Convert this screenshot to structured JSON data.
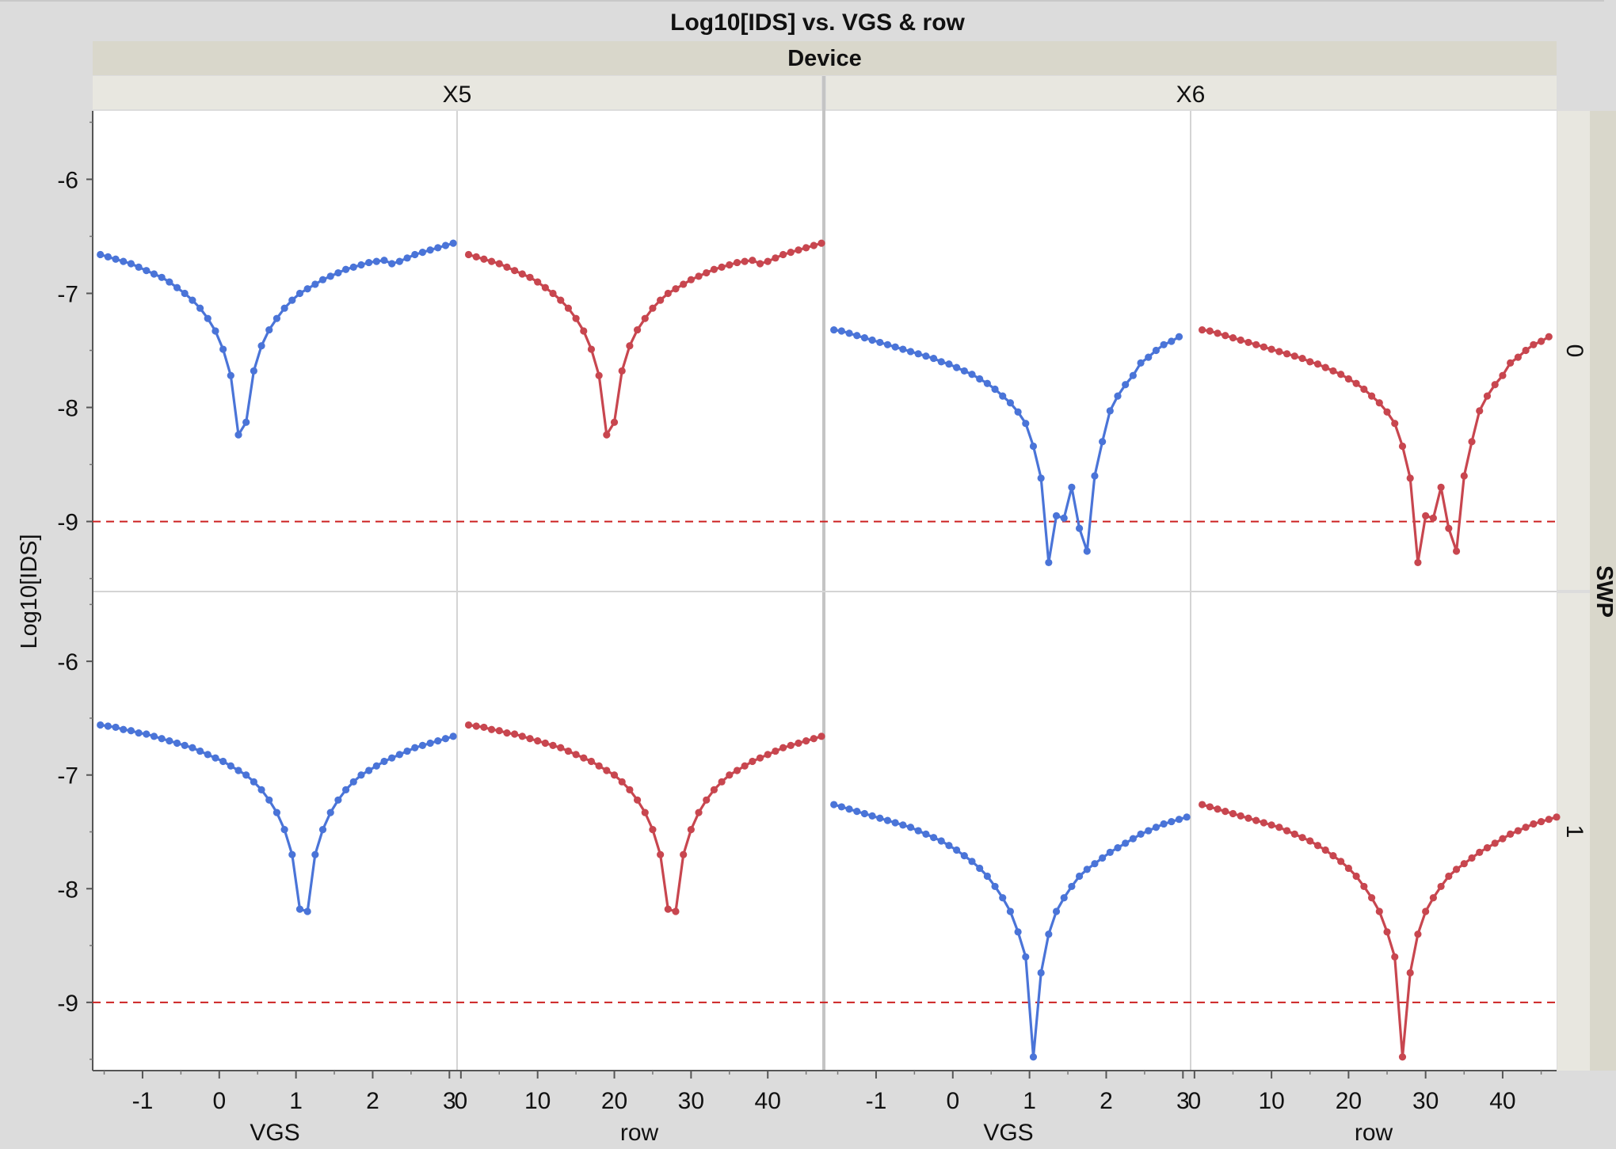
{
  "title": "Log10[IDS] vs. VGS & row",
  "group_x_label": "Device",
  "group_y_label": "SWP",
  "y_label": "Log10[IDS]",
  "colors": {
    "vgs": "#4a74d8",
    "row": "#c8464f",
    "ref": "#cc2222"
  },
  "chart_data": {
    "type": "line",
    "title": "Log10[IDS] vs. VGS & row",
    "ylabel": "Log10[IDS]",
    "ylim": [
      -9.6,
      -5.4
    ],
    "yticks": [
      "-6",
      "-7",
      "-8",
      "-9"
    ],
    "ytick_values": [
      -6,
      -7,
      -8,
      -9
    ],
    "reference_line": -9,
    "devices": [
      "X5",
      "X6"
    ],
    "swp": [
      "0",
      "1"
    ],
    "vgs_axis": {
      "label": "VGS",
      "lim": [
        -1.65,
        3.1
      ],
      "ticks": [
        "-1",
        "0",
        "1",
        "2",
        "3"
      ],
      "tick_values": [
        -1,
        0,
        1,
        2,
        3
      ]
    },
    "row_axis": {
      "label": "row",
      "lim": [
        -0.5,
        47
      ],
      "ticks": [
        "0",
        "10",
        "20",
        "30",
        "40"
      ],
      "tick_values": [
        0,
        10,
        20,
        30,
        40
      ]
    },
    "panels": [
      {
        "device": "X5",
        "swp": "0",
        "curve": [
          [
            0,
            -6.66
          ],
          [
            1,
            -6.68
          ],
          [
            2,
            -6.7
          ],
          [
            3,
            -6.72
          ],
          [
            4,
            -6.74
          ],
          [
            5,
            -6.77
          ],
          [
            6,
            -6.8
          ],
          [
            7,
            -6.83
          ],
          [
            8,
            -6.86
          ],
          [
            9,
            -6.9
          ],
          [
            10,
            -6.95
          ],
          [
            11,
            -7.0
          ],
          [
            12,
            -7.06
          ],
          [
            13,
            -7.13
          ],
          [
            14,
            -7.22
          ],
          [
            15,
            -7.33
          ],
          [
            16,
            -7.49
          ],
          [
            17,
            -7.72
          ],
          [
            18,
            -8.24
          ],
          [
            19,
            -8.13
          ],
          [
            20,
            -7.68
          ],
          [
            21,
            -7.46
          ],
          [
            22,
            -7.32
          ],
          [
            23,
            -7.22
          ],
          [
            24,
            -7.13
          ],
          [
            25,
            -7.06
          ],
          [
            26,
            -7.0
          ],
          [
            27,
            -6.96
          ],
          [
            28,
            -6.92
          ],
          [
            29,
            -6.88
          ],
          [
            30,
            -6.85
          ],
          [
            31,
            -6.82
          ],
          [
            32,
            -6.79
          ],
          [
            33,
            -6.77
          ],
          [
            34,
            -6.75
          ],
          [
            35,
            -6.73
          ],
          [
            36,
            -6.72
          ],
          [
            37,
            -6.71
          ],
          [
            38,
            -6.74
          ],
          [
            39,
            -6.72
          ],
          [
            40,
            -6.69
          ],
          [
            41,
            -6.66
          ],
          [
            42,
            -6.64
          ],
          [
            43,
            -6.62
          ],
          [
            44,
            -6.6
          ],
          [
            45,
            -6.58
          ],
          [
            46,
            -6.56
          ]
        ]
      },
      {
        "device": "X6",
        "swp": "0",
        "curve": [
          [
            0,
            -7.32
          ],
          [
            1,
            -7.33
          ],
          [
            2,
            -7.35
          ],
          [
            3,
            -7.37
          ],
          [
            4,
            -7.39
          ],
          [
            5,
            -7.41
          ],
          [
            6,
            -7.43
          ],
          [
            7,
            -7.45
          ],
          [
            8,
            -7.47
          ],
          [
            9,
            -7.49
          ],
          [
            10,
            -7.51
          ],
          [
            11,
            -7.53
          ],
          [
            12,
            -7.55
          ],
          [
            13,
            -7.57
          ],
          [
            14,
            -7.6
          ],
          [
            15,
            -7.62
          ],
          [
            16,
            -7.65
          ],
          [
            17,
            -7.68
          ],
          [
            18,
            -7.71
          ],
          [
            19,
            -7.75
          ],
          [
            20,
            -7.79
          ],
          [
            21,
            -7.84
          ],
          [
            22,
            -7.9
          ],
          [
            23,
            -7.96
          ],
          [
            24,
            -8.04
          ],
          [
            25,
            -8.14
          ],
          [
            26,
            -8.34
          ],
          [
            27,
            -8.62
          ],
          [
            28,
            -9.36
          ],
          [
            29,
            -8.95
          ],
          [
            30,
            -8.97
          ],
          [
            31,
            -8.7
          ],
          [
            32,
            -9.06
          ],
          [
            33,
            -9.26
          ],
          [
            34,
            -8.6
          ],
          [
            35,
            -8.3
          ],
          [
            36,
            -8.03
          ],
          [
            37,
            -7.9
          ],
          [
            38,
            -7.8
          ],
          [
            39,
            -7.72
          ],
          [
            40,
            -7.61
          ],
          [
            41,
            -7.56
          ],
          [
            42,
            -7.5
          ],
          [
            43,
            -7.45
          ],
          [
            44,
            -7.42
          ],
          [
            45,
            -7.38
          ]
        ]
      },
      {
        "device": "X5",
        "swp": "1",
        "curve": [
          [
            0,
            -6.56
          ],
          [
            1,
            -6.57
          ],
          [
            2,
            -6.58
          ],
          [
            3,
            -6.6
          ],
          [
            4,
            -6.61
          ],
          [
            5,
            -6.63
          ],
          [
            6,
            -6.64
          ],
          [
            7,
            -6.66
          ],
          [
            8,
            -6.68
          ],
          [
            9,
            -6.7
          ],
          [
            10,
            -6.72
          ],
          [
            11,
            -6.74
          ],
          [
            12,
            -6.76
          ],
          [
            13,
            -6.79
          ],
          [
            14,
            -6.82
          ],
          [
            15,
            -6.85
          ],
          [
            16,
            -6.88
          ],
          [
            17,
            -6.92
          ],
          [
            18,
            -6.96
          ],
          [
            19,
            -7.0
          ],
          [
            20,
            -7.06
          ],
          [
            21,
            -7.13
          ],
          [
            22,
            -7.22
          ],
          [
            23,
            -7.33
          ],
          [
            24,
            -7.48
          ],
          [
            25,
            -7.7
          ],
          [
            26,
            -8.18
          ],
          [
            27,
            -8.2
          ],
          [
            28,
            -7.7
          ],
          [
            29,
            -7.48
          ],
          [
            30,
            -7.33
          ],
          [
            31,
            -7.22
          ],
          [
            32,
            -7.13
          ],
          [
            33,
            -7.06
          ],
          [
            34,
            -7.0
          ],
          [
            35,
            -6.96
          ],
          [
            36,
            -6.92
          ],
          [
            37,
            -6.88
          ],
          [
            38,
            -6.85
          ],
          [
            39,
            -6.82
          ],
          [
            40,
            -6.79
          ],
          [
            41,
            -6.76
          ],
          [
            42,
            -6.74
          ],
          [
            43,
            -6.72
          ],
          [
            44,
            -6.7
          ],
          [
            45,
            -6.68
          ],
          [
            46,
            -6.66
          ]
        ]
      },
      {
        "device": "X6",
        "swp": "1",
        "curve": [
          [
            0,
            -7.26
          ],
          [
            1,
            -7.28
          ],
          [
            2,
            -7.3
          ],
          [
            3,
            -7.32
          ],
          [
            4,
            -7.34
          ],
          [
            5,
            -7.36
          ],
          [
            6,
            -7.38
          ],
          [
            7,
            -7.4
          ],
          [
            8,
            -7.42
          ],
          [
            9,
            -7.44
          ],
          [
            10,
            -7.46
          ],
          [
            11,
            -7.49
          ],
          [
            12,
            -7.52
          ],
          [
            13,
            -7.55
          ],
          [
            14,
            -7.58
          ],
          [
            15,
            -7.62
          ],
          [
            16,
            -7.66
          ],
          [
            17,
            -7.71
          ],
          [
            18,
            -7.76
          ],
          [
            19,
            -7.82
          ],
          [
            20,
            -7.89
          ],
          [
            21,
            -7.98
          ],
          [
            22,
            -8.08
          ],
          [
            23,
            -8.2
          ],
          [
            24,
            -8.38
          ],
          [
            25,
            -8.6
          ],
          [
            26,
            -9.48
          ],
          [
            27,
            -8.74
          ],
          [
            28,
            -8.4
          ],
          [
            29,
            -8.2
          ],
          [
            30,
            -8.08
          ],
          [
            31,
            -7.98
          ],
          [
            32,
            -7.89
          ],
          [
            33,
            -7.83
          ],
          [
            34,
            -7.78
          ],
          [
            35,
            -7.73
          ],
          [
            36,
            -7.68
          ],
          [
            37,
            -7.64
          ],
          [
            38,
            -7.6
          ],
          [
            39,
            -7.56
          ],
          [
            40,
            -7.52
          ],
          [
            41,
            -7.49
          ],
          [
            42,
            -7.46
          ],
          [
            43,
            -7.43
          ],
          [
            44,
            -7.41
          ],
          [
            45,
            -7.39
          ],
          [
            46,
            -7.37
          ]
        ]
      }
    ]
  }
}
